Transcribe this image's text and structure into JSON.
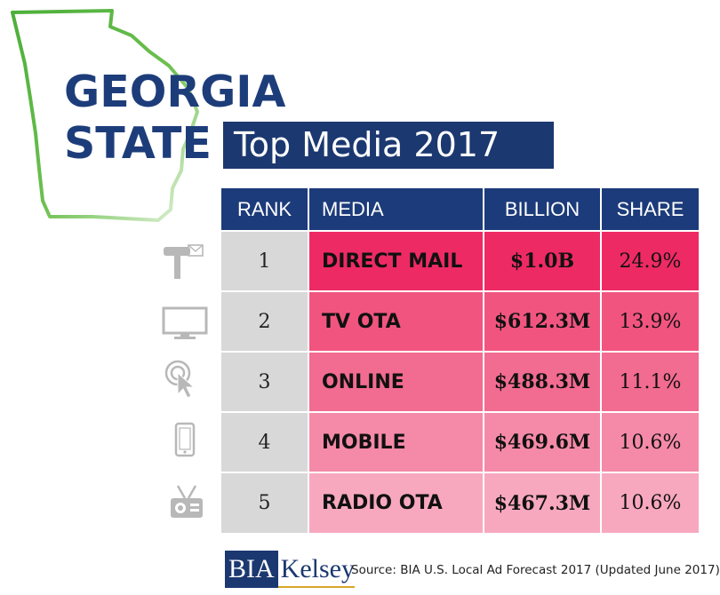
{
  "title": {
    "line1": "GEORGIA",
    "line2": "STATE",
    "banner": "Top Media 2017"
  },
  "colors": {
    "title_blue": "#1d3d7a",
    "banner_navy": "#1b3870",
    "outline_green": "#4caf3a",
    "rank_gray": "#d8d8d8",
    "row_pinks": [
      "#ee2a64",
      "#f1557f",
      "#f26b90",
      "#f58aa8",
      "#f7a8bf"
    ],
    "icon_gray": "#b8b8b8"
  },
  "chart_data": {
    "type": "table",
    "title": "Top Media 2017",
    "columns": [
      "RANK",
      "MEDIA",
      "BILLION",
      "SHARE"
    ],
    "rows": [
      {
        "rank": "1",
        "media": "DIRECT MAIL",
        "billion": "$1.0B",
        "share": "24.9%",
        "icon": "mailbox-icon"
      },
      {
        "rank": "2",
        "media": "TV OTA",
        "billion": "$612.3M",
        "share": "13.9%",
        "icon": "tv-icon"
      },
      {
        "rank": "3",
        "media": "ONLINE",
        "billion": "$488.3M",
        "share": "11.1%",
        "icon": "click-cursor-icon"
      },
      {
        "rank": "4",
        "media": "MOBILE",
        "billion": "$469.6M",
        "share": "10.6%",
        "icon": "smartphone-icon"
      },
      {
        "rank": "5",
        "media": "RADIO OTA",
        "billion": "$467.3M",
        "share": "10.6%",
        "icon": "radio-icon"
      }
    ],
    "values_usd_millions": [
      1000,
      612.3,
      488.3,
      469.6,
      467.3
    ],
    "share_percent": [
      24.9,
      13.9,
      11.1,
      10.6,
      10.6
    ]
  },
  "footer": {
    "logo_part1": "BIA",
    "logo_part2": "Kelsey",
    "source": "Source: BIA U.S. Local Ad Forecast 2017 (Updated June 2017)"
  }
}
